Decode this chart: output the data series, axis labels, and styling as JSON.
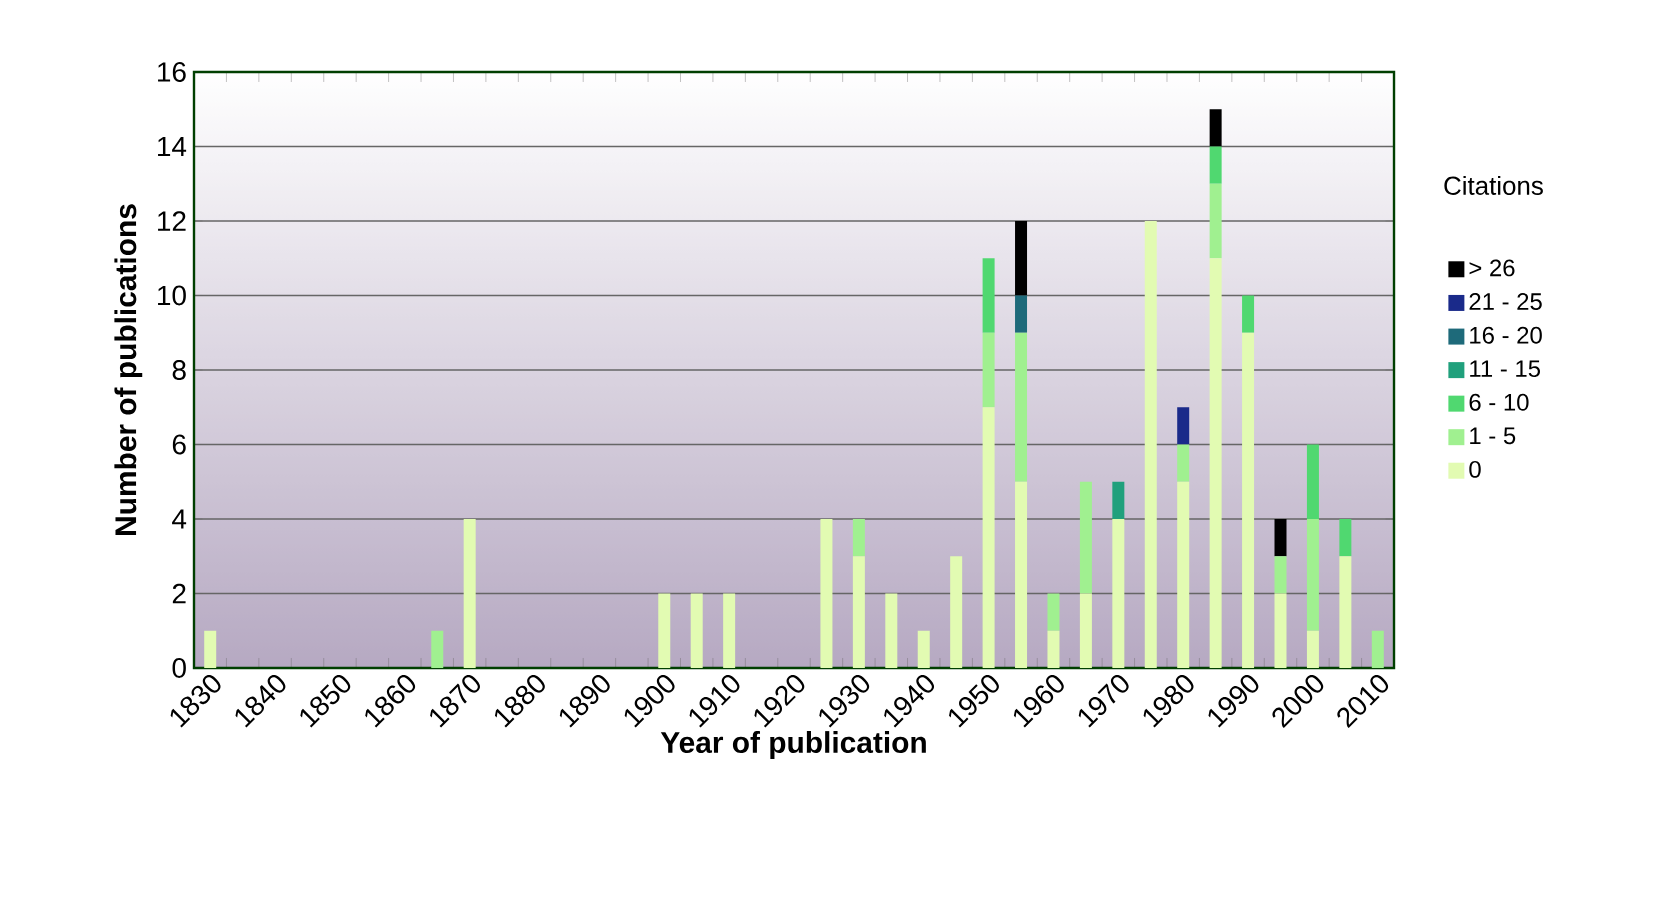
{
  "chart_data": {
    "type": "bar",
    "stacked": true,
    "xlabel": "Year of publication",
    "ylabel": "Number of publications",
    "legend_title": "Citations",
    "categories": [
      "1830",
      null,
      "1840",
      null,
      "1850",
      null,
      "1860",
      null,
      "1870",
      null,
      "1880",
      null,
      "1890",
      null,
      "1900",
      null,
      "1910",
      null,
      "1920",
      null,
      "1930",
      null,
      "1940",
      null,
      "1950",
      null,
      "1960",
      null,
      "1970",
      null,
      "1980",
      null,
      "1990",
      null,
      "2000",
      null,
      "2010"
    ],
    "series": [
      {
        "name": "0",
        "color": "#e2fbb2",
        "values": [
          1,
          0,
          0,
          0,
          0,
          0,
          0,
          0,
          4,
          0,
          0,
          0,
          0,
          0,
          2,
          2,
          2,
          0,
          0,
          4,
          3,
          2,
          1,
          3,
          7,
          5,
          1,
          2,
          4,
          12,
          5,
          11,
          9,
          2,
          1,
          3,
          0
        ]
      },
      {
        "name": "1 - 5",
        "color": "#a0f090",
        "values": [
          0,
          0,
          0,
          0,
          0,
          0,
          0,
          1,
          0,
          0,
          0,
          0,
          0,
          0,
          0,
          0,
          0,
          0,
          0,
          0,
          1,
          0,
          0,
          0,
          2,
          4,
          1,
          3,
          0,
          0,
          1,
          2,
          0,
          1,
          3,
          0,
          1
        ]
      },
      {
        "name": "6 - 10",
        "color": "#50d870",
        "values": [
          0,
          0,
          0,
          0,
          0,
          0,
          0,
          0,
          0,
          0,
          0,
          0,
          0,
          0,
          0,
          0,
          0,
          0,
          0,
          0,
          0,
          0,
          0,
          0,
          2,
          0,
          0,
          0,
          0,
          0,
          0,
          1,
          1,
          0,
          2,
          1,
          0
        ]
      },
      {
        "name": "11 - 15",
        "color": "#20a07c",
        "values": [
          0,
          0,
          0,
          0,
          0,
          0,
          0,
          0,
          0,
          0,
          0,
          0,
          0,
          0,
          0,
          0,
          0,
          0,
          0,
          0,
          0,
          0,
          0,
          0,
          0,
          0,
          0,
          0,
          1,
          0,
          0,
          0,
          0,
          0,
          0,
          0,
          0
        ]
      },
      {
        "name": "16 - 20",
        "color": "#1e6a7a",
        "values": [
          0,
          0,
          0,
          0,
          0,
          0,
          0,
          0,
          0,
          0,
          0,
          0,
          0,
          0,
          0,
          0,
          0,
          0,
          0,
          0,
          0,
          0,
          0,
          0,
          0,
          1,
          0,
          0,
          0,
          0,
          0,
          0,
          0,
          0,
          0,
          0,
          0
        ]
      },
      {
        "name": "21 - 25",
        "color": "#1a2a8a",
        "values": [
          0,
          0,
          0,
          0,
          0,
          0,
          0,
          0,
          0,
          0,
          0,
          0,
          0,
          0,
          0,
          0,
          0,
          0,
          0,
          0,
          0,
          0,
          0,
          0,
          0,
          0,
          0,
          0,
          0,
          0,
          1,
          0,
          0,
          0,
          0,
          0,
          0
        ]
      },
      {
        "name": "> 26",
        "color": "#000000",
        "values": [
          0,
          0,
          0,
          0,
          0,
          0,
          0,
          0,
          0,
          0,
          0,
          0,
          0,
          0,
          0,
          0,
          0,
          0,
          0,
          0,
          0,
          0,
          0,
          0,
          0,
          2,
          0,
          0,
          0,
          0,
          0,
          1,
          0,
          1,
          0,
          0,
          0
        ]
      }
    ],
    "ylim": [
      0,
      16
    ],
    "yticks": [
      0,
      2,
      4,
      6,
      8,
      10,
      12,
      14,
      16
    ],
    "grid": "y",
    "legend": "right"
  }
}
